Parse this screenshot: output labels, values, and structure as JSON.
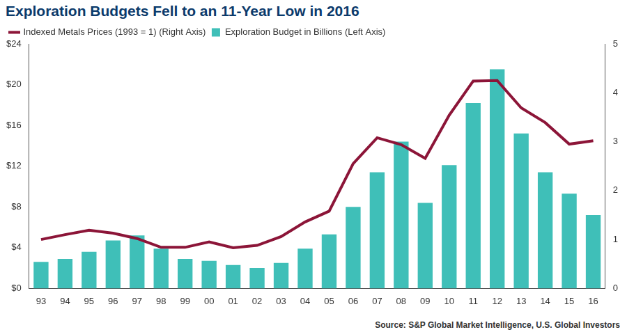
{
  "chart_data": {
    "type": "bar",
    "title": "Exploration Budgets Fell to an 11-Year Low in 2016",
    "source": "Source: S&P Global Market Intelligence, U.S. Global Investors",
    "categories": [
      "93",
      "94",
      "95",
      "96",
      "97",
      "98",
      "99",
      "00",
      "01",
      "02",
      "03",
      "04",
      "05",
      "06",
      "07",
      "08",
      "09",
      "10",
      "11",
      "12",
      "13",
      "14",
      "15",
      "16"
    ],
    "series": [
      {
        "name": "Exploration Budget in Billions (Left Axis)",
        "type": "bar",
        "color": "#3fbfb8",
        "axis": "y",
        "values": [
          2.6,
          2.9,
          3.6,
          4.7,
          5.2,
          3.9,
          2.9,
          2.7,
          2.3,
          2.0,
          2.5,
          3.9,
          5.3,
          8.0,
          11.4,
          14.4,
          8.4,
          12.1,
          18.2,
          21.5,
          15.2,
          11.4,
          9.3,
          7.2
        ]
      },
      {
        "name": "Indexed Metals Prices (1993 = 1) (Right Axis)",
        "type": "line",
        "color": "#8c1538",
        "axis": "y2",
        "marker": "none",
        "line_style": "solid",
        "values": [
          1.0,
          1.1,
          1.19,
          1.13,
          1.02,
          0.84,
          0.84,
          0.95,
          0.83,
          0.88,
          1.06,
          1.36,
          1.58,
          2.55,
          3.08,
          2.94,
          2.66,
          3.54,
          4.24,
          4.25,
          3.69,
          3.39,
          2.95,
          3.02
        ]
      }
    ],
    "ylim": [
      0,
      24
    ],
    "yticks": [
      {
        "value": 0,
        "label": "$0"
      },
      {
        "value": 4,
        "label": "$4"
      },
      {
        "value": 8,
        "label": "$8"
      },
      {
        "value": 12,
        "label": "$12"
      },
      {
        "value": 16,
        "label": "$16"
      },
      {
        "value": 20,
        "label": "$20"
      },
      {
        "value": 24,
        "label": "$24"
      }
    ],
    "y2lim": [
      0,
      5
    ],
    "y2ticks": [
      0,
      1,
      2,
      3,
      4,
      5
    ],
    "grid": false,
    "legend": "upper left"
  }
}
